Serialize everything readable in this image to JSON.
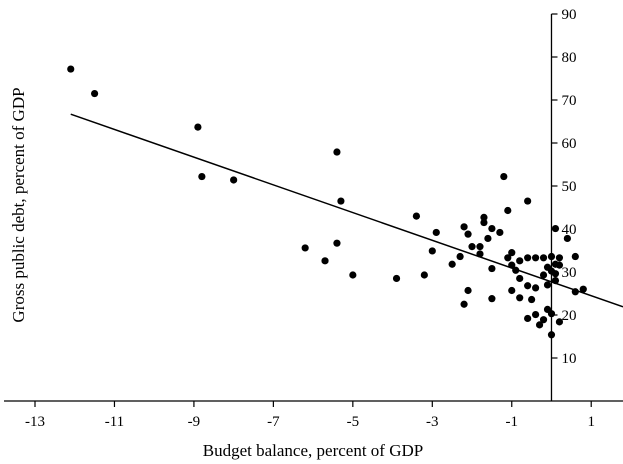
{
  "chart_data": {
    "type": "scatter",
    "title": "",
    "xlabel": "Budget balance, percent of GDP",
    "ylabel": "Gross public debt, percent of GDP",
    "xlim": [
      -13,
      1.8
    ],
    "ylim": [
      0,
      90
    ],
    "xticks": [
      -13,
      -11,
      -9,
      -7,
      -5,
      -3,
      -1,
      1
    ],
    "yticks": [
      10,
      20,
      30,
      40,
      50,
      60,
      70,
      80,
      90
    ],
    "grid": false,
    "legend": "none",
    "colors": {
      "points": "#000000",
      "axes": "#000000",
      "trendline": "#000000"
    },
    "trendline": {
      "x": [
        -12.1,
        1.8
      ],
      "y": [
        66.7,
        21.9
      ]
    },
    "points": [
      {
        "x": -12.1,
        "y": 77.2
      },
      {
        "x": -11.5,
        "y": 71.5
      },
      {
        "x": -8.9,
        "y": 63.7
      },
      {
        "x": -8.8,
        "y": 52.2
      },
      {
        "x": -8.0,
        "y": 51.4
      },
      {
        "x": -5.4,
        "y": 57.9
      },
      {
        "x": -5.3,
        "y": 46.5
      },
      {
        "x": -6.2,
        "y": 35.6
      },
      {
        "x": -5.7,
        "y": 32.6
      },
      {
        "x": -5.4,
        "y": 36.7
      },
      {
        "x": -5.0,
        "y": 29.3
      },
      {
        "x": -3.9,
        "y": 28.5
      },
      {
        "x": -3.4,
        "y": 43.0
      },
      {
        "x": -3.2,
        "y": 29.3
      },
      {
        "x": -3.0,
        "y": 34.9
      },
      {
        "x": -2.9,
        "y": 39.2
      },
      {
        "x": -2.5,
        "y": 31.8
      },
      {
        "x": -2.3,
        "y": 33.6
      },
      {
        "x": -2.2,
        "y": 40.5
      },
      {
        "x": -2.1,
        "y": 38.8
      },
      {
        "x": -2.0,
        "y": 35.9
      },
      {
        "x": -2.1,
        "y": 25.7
      },
      {
        "x": -2.2,
        "y": 22.5
      },
      {
        "x": -1.8,
        "y": 35.9
      },
      {
        "x": -1.8,
        "y": 34.2
      },
      {
        "x": -1.7,
        "y": 41.5
      },
      {
        "x": -1.7,
        "y": 42.7
      },
      {
        "x": -1.6,
        "y": 37.8
      },
      {
        "x": -1.5,
        "y": 40.1
      },
      {
        "x": -1.5,
        "y": 30.8
      },
      {
        "x": -1.5,
        "y": 23.8
      },
      {
        "x": -1.3,
        "y": 39.2
      },
      {
        "x": -1.2,
        "y": 52.2
      },
      {
        "x": -1.1,
        "y": 44.3
      },
      {
        "x": -1.1,
        "y": 33.3
      },
      {
        "x": -1.0,
        "y": 34.5
      },
      {
        "x": -1.0,
        "y": 31.6
      },
      {
        "x": -1.0,
        "y": 25.7
      },
      {
        "x": -0.9,
        "y": 30.4
      },
      {
        "x": -0.8,
        "y": 32.6
      },
      {
        "x": -0.8,
        "y": 28.5
      },
      {
        "x": -0.8,
        "y": 24.0
      },
      {
        "x": -0.6,
        "y": 46.5
      },
      {
        "x": -0.6,
        "y": 33.3
      },
      {
        "x": -0.6,
        "y": 26.8
      },
      {
        "x": -0.6,
        "y": 19.2
      },
      {
        "x": -0.5,
        "y": 23.6
      },
      {
        "x": -0.4,
        "y": 33.3
      },
      {
        "x": -0.4,
        "y": 26.3
      },
      {
        "x": -0.4,
        "y": 20.1
      },
      {
        "x": -0.3,
        "y": 17.7
      },
      {
        "x": -0.2,
        "y": 33.3
      },
      {
        "x": -0.2,
        "y": 29.3
      },
      {
        "x": -0.2,
        "y": 18.9
      },
      {
        "x": -0.1,
        "y": 31.1
      },
      {
        "x": -0.1,
        "y": 27.0
      },
      {
        "x": -0.1,
        "y": 21.3
      },
      {
        "x": 0.0,
        "y": 33.6
      },
      {
        "x": 0.0,
        "y": 30.2
      },
      {
        "x": 0.0,
        "y": 20.3
      },
      {
        "x": 0.0,
        "y": 15.4
      },
      {
        "x": 0.1,
        "y": 40.1
      },
      {
        "x": 0.1,
        "y": 31.8
      },
      {
        "x": 0.1,
        "y": 29.6
      },
      {
        "x": 0.1,
        "y": 28.0
      },
      {
        "x": 0.2,
        "y": 33.3
      },
      {
        "x": 0.2,
        "y": 31.6
      },
      {
        "x": 0.2,
        "y": 18.4
      },
      {
        "x": 0.4,
        "y": 37.8
      },
      {
        "x": 0.6,
        "y": 33.6
      },
      {
        "x": 0.6,
        "y": 25.4
      },
      {
        "x": 0.8,
        "y": 26.0
      }
    ]
  }
}
